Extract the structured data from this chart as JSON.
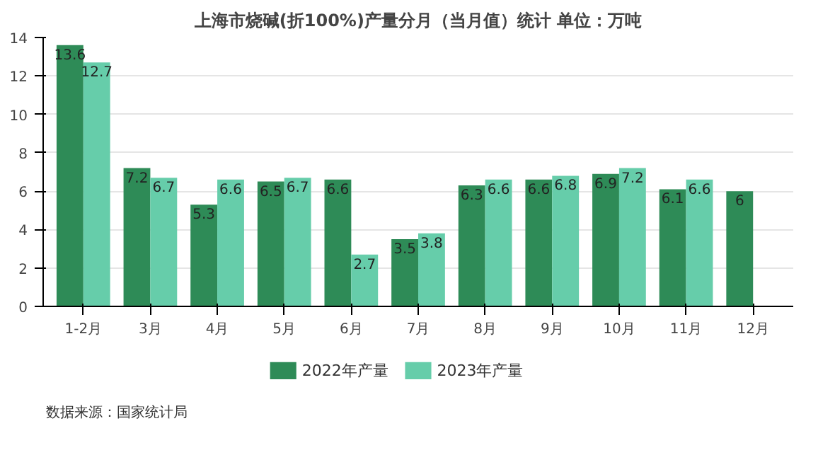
{
  "chart_data": {
    "type": "bar",
    "title": "上海市烧碱(折100%)产量分月（当月值）统计 单位：万吨",
    "categories": [
      "1-2月",
      "3月",
      "4月",
      "5月",
      "6月",
      "7月",
      "8月",
      "9月",
      "10月",
      "11月",
      "12月"
    ],
    "series": [
      {
        "name": "2022年产量",
        "color": "#2e8b57",
        "values": [
          13.6,
          7.2,
          5.3,
          6.5,
          6.6,
          3.5,
          6.3,
          6.6,
          6.9,
          6.1,
          6
        ]
      },
      {
        "name": "2023年产量",
        "color": "#66cdaa",
        "values": [
          12.7,
          6.7,
          6.6,
          6.7,
          2.7,
          3.8,
          6.6,
          6.8,
          7.2,
          6.6,
          null
        ]
      }
    ],
    "ylim": [
      0,
      14
    ],
    "yticks": [
      0,
      2,
      4,
      6,
      8,
      10,
      12,
      14
    ],
    "grid": "y",
    "legend": "bottom",
    "data_labels": true,
    "annotations": [
      "数据来源：国家统计局"
    ]
  }
}
